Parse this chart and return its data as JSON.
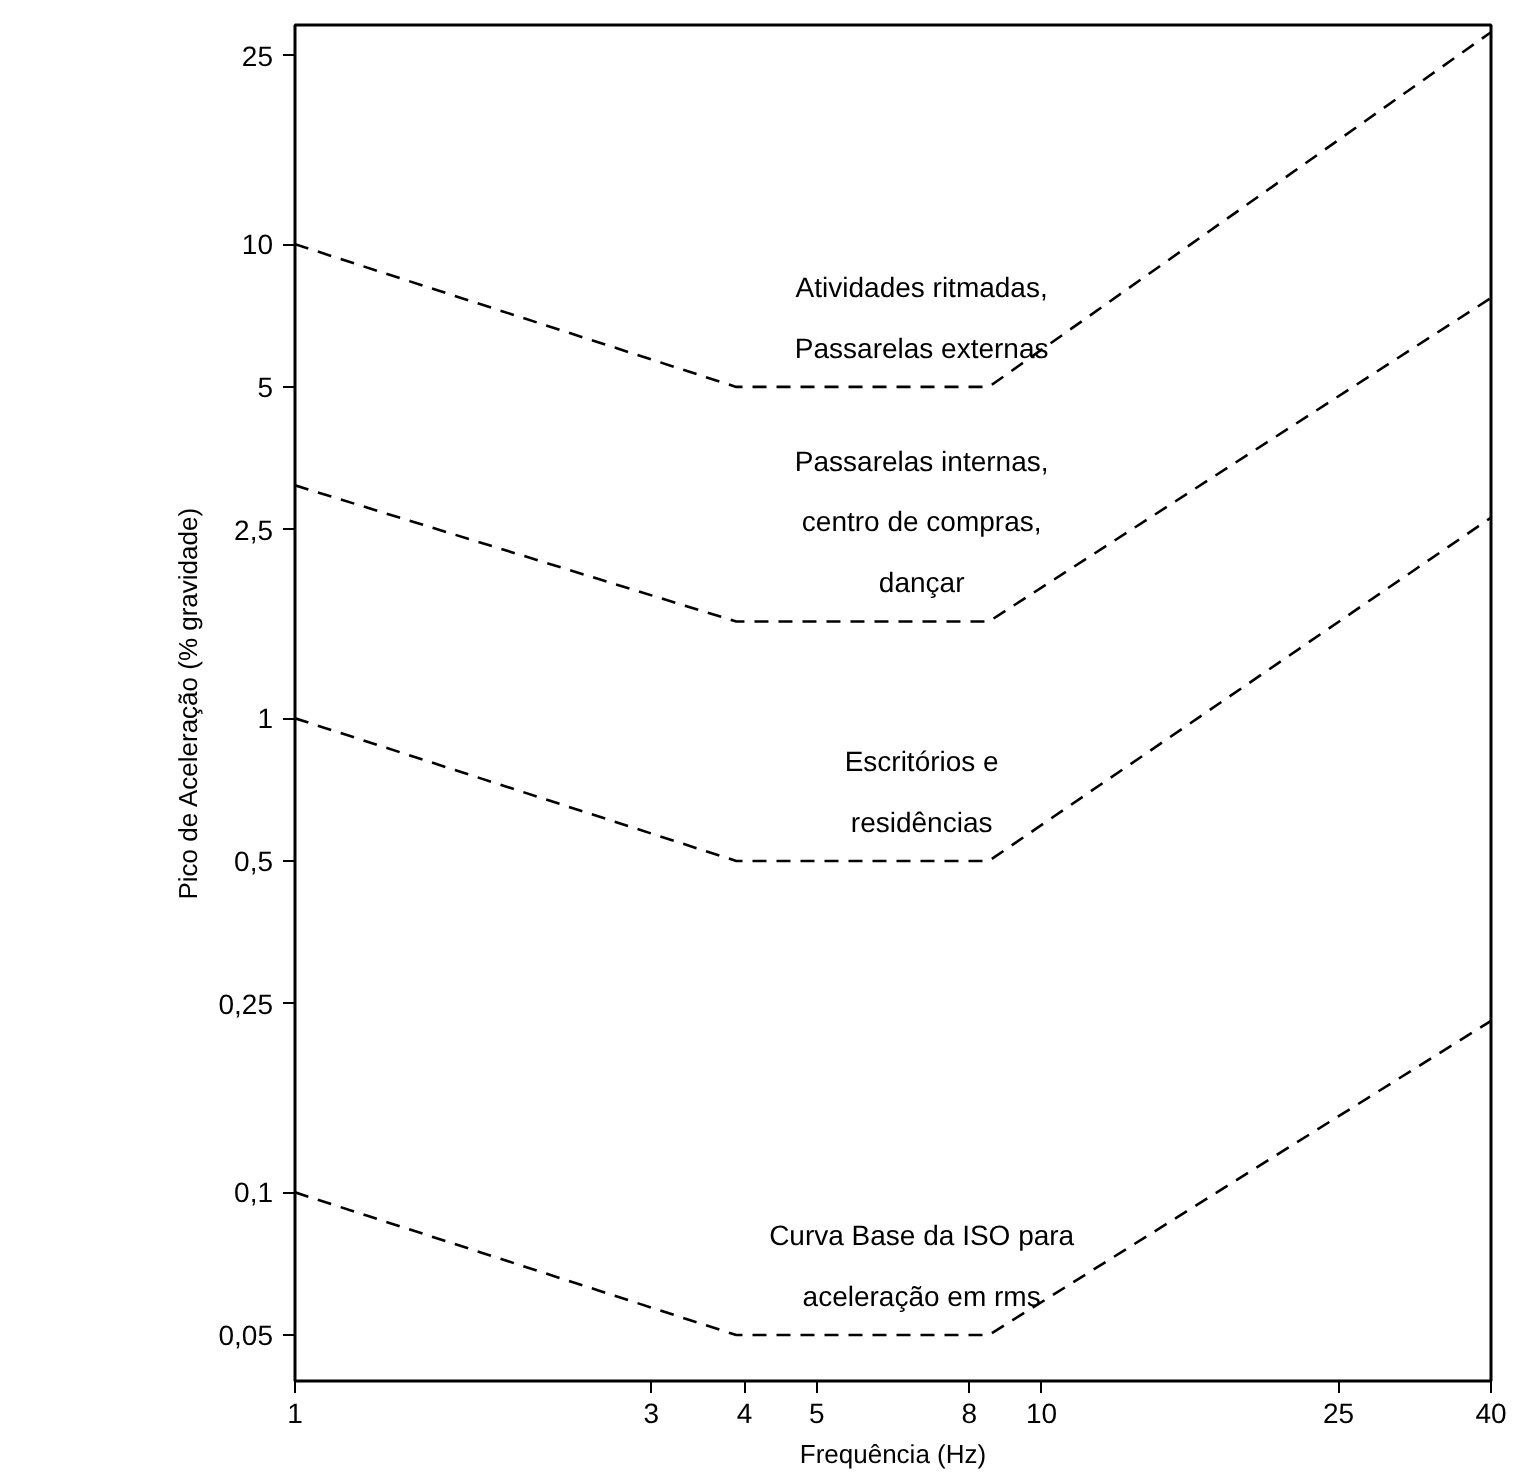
{
  "chart_data": {
    "type": "line",
    "xlabel": "Frequência (Hz)",
    "ylabel": "Pico de Aceleração (% gravidade)",
    "log": "xy",
    "grid": false,
    "marker": "none",
    "line_style": "dashed",
    "x": [
      1,
      3.9,
      8.5,
      40
    ],
    "xlim": [
      1,
      40
    ],
    "xticks": [
      1,
      3,
      4,
      5,
      8,
      10,
      25,
      40
    ],
    "ylim": [
      0.04,
      29
    ],
    "yticks": [
      {
        "value": 0.05,
        "label": "0,05"
      },
      {
        "value": 0.1,
        "label": "0,1"
      },
      {
        "value": 0.25,
        "label": "0,25"
      },
      {
        "value": 0.5,
        "label": "0,5"
      },
      1,
      {
        "value": 2.5,
        "label": "2,5"
      },
      5,
      10,
      25
    ],
    "series": [
      {
        "color": "#000000",
        "values": [
          10,
          5,
          5,
          28
        ]
      },
      {
        "color": "#000000",
        "values": [
          3.1,
          1.6,
          1.6,
          7.7
        ]
      },
      {
        "color": "#000000",
        "values": [
          1,
          0.5,
          0.5,
          2.65
        ]
      },
      {
        "color": "#000000",
        "values": [
          0.1,
          0.05,
          0.05,
          0.23
        ]
      }
    ],
    "annotations": [
      "Atividades ritmadas,\nPassarelas externas",
      "Passarelas internas,\ncentro de compras,\ndançar",
      "Escritórios e\nresidências",
      "Curva Base da ISO para\naceleração em rms"
    ]
  }
}
